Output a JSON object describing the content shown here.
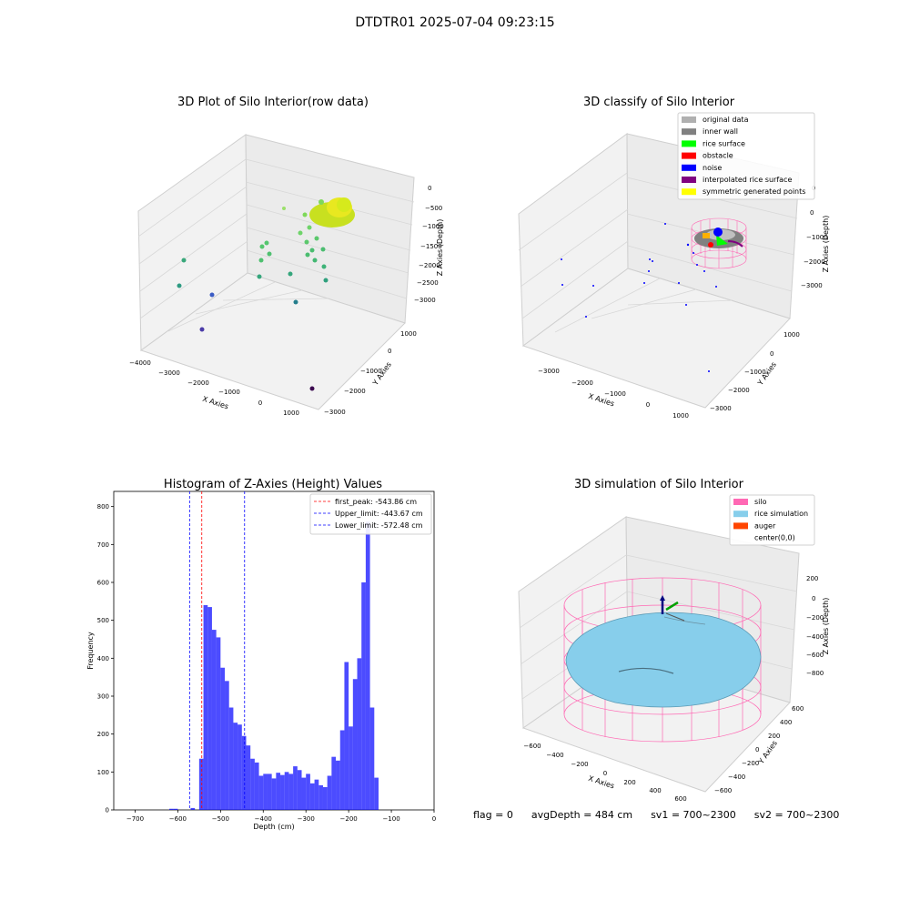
{
  "suptitle": "DTDTR01 2025-07-04 09:23:15",
  "panels": {
    "raw": {
      "title": "3D Plot of Silo Interior(row data)",
      "xlabel": "X Axies",
      "ylabel": "Y Axies",
      "zlabel": "Z Axies (Depth)",
      "xticks": [
        "−4000",
        "−3000",
        "−2000",
        "−1000",
        "0",
        "1000"
      ],
      "yticks": [
        "1000",
        "0",
        "−1000",
        "−2000",
        "−3000"
      ],
      "zticks": [
        "0",
        "−500",
        "−1000",
        "−1500",
        "−2000",
        "−2500",
        "−3000"
      ]
    },
    "classify": {
      "title": "3D classify of Silo Interior",
      "xlabel": "X Axies",
      "ylabel": "Y Axies",
      "zlabel": "Z Axies (Depth)",
      "xticks": [
        "−3000",
        "−2000",
        "−1000",
        "0",
        "1000"
      ],
      "yticks": [
        "1000",
        "0",
        "−1000",
        "−2000",
        "−3000"
      ],
      "zticks": [
        "0",
        "−1000",
        "−2000",
        "−3000"
      ],
      "legend": [
        {
          "label": "original data",
          "color": "#b0b0b0"
        },
        {
          "label": "inner wall",
          "color": "#808080"
        },
        {
          "label": "rice surface",
          "color": "#00ff00"
        },
        {
          "label": "obstacle",
          "color": "#ff0000"
        },
        {
          "label": "noise",
          "color": "#0000ff"
        },
        {
          "label": "interpolated rice surface",
          "color": "#800080"
        },
        {
          "label": "symmetric generated points",
          "color": "#ffff00"
        }
      ]
    },
    "simulation": {
      "title": "3D simulation of Silo Interior",
      "xlabel": "X Axies",
      "ylabel": "Y Axies",
      "zlabel": "Z Axies (Depth)",
      "xticks": [
        "−600",
        "−400",
        "−200",
        "0",
        "200",
        "400",
        "600"
      ],
      "yticks": [
        "600",
        "400",
        "200",
        "0",
        "−200",
        "−400",
        "−600"
      ],
      "zticks": [
        "200",
        "0",
        "−200",
        "−400",
        "−600",
        "−800"
      ],
      "legend": [
        {
          "label": "silo",
          "color": "#ff69b4"
        },
        {
          "label": "rice simulation",
          "color": "#87ceeb"
        },
        {
          "label": "auger",
          "color": "#ff4500"
        },
        {
          "label": "center(0,0)",
          "color": ""
        }
      ]
    }
  },
  "chart_data": {
    "type": "bar",
    "title": "Histogram of Z-Axies (Height) Values",
    "xlabel": "Depth (cm)",
    "ylabel": "Frequency",
    "xlim": [
      -750,
      0
    ],
    "ylim": [
      0,
      840
    ],
    "xticks": [
      -700,
      -600,
      -500,
      -400,
      -300,
      -200,
      -100,
      0
    ],
    "yticks": [
      0,
      100,
      200,
      300,
      400,
      500,
      600,
      700,
      800
    ],
    "bar_color": "#0000ff",
    "bin_width": 10,
    "bins_start": [
      -620,
      -610,
      -600,
      -590,
      -580,
      -570,
      -560,
      -550,
      -540,
      -530,
      -520,
      -510,
      -500,
      -490,
      -480,
      -470,
      -460,
      -450,
      -440,
      -430,
      -420,
      -410,
      -400,
      -390,
      -380,
      -370,
      -360,
      -350,
      -340,
      -330,
      -320,
      -310,
      -300,
      -290,
      -280,
      -270,
      -260,
      -250,
      -240,
      -230,
      -220,
      -210,
      -200,
      -190,
      -180,
      -170,
      -160,
      -150,
      -140,
      -130,
      -120,
      -110,
      -100,
      -90,
      -80,
      -70,
      -60,
      -50,
      -40,
      -30,
      -20,
      -10
    ],
    "values": [
      3,
      3,
      0,
      0,
      0,
      5,
      0,
      135,
      540,
      535,
      475,
      455,
      375,
      340,
      270,
      230,
      225,
      195,
      170,
      135,
      125,
      90,
      95,
      95,
      83,
      98,
      92,
      100,
      95,
      115,
      105,
      85,
      95,
      70,
      80,
      65,
      60,
      90,
      140,
      130,
      210,
      390,
      220,
      345,
      400,
      600,
      760,
      270,
      85,
      0,
      0,
      0,
      0,
      0,
      0,
      0,
      0,
      0,
      0,
      0,
      0,
      0
    ],
    "vlines": [
      {
        "label": "first_peak: -543.86 cm",
        "x": -543.86,
        "color": "#ff0000"
      },
      {
        "label": "Upper_limit: -443.67 cm",
        "x": -443.67,
        "color": "#0000ff"
      },
      {
        "label": "Lower_limit: -572.48 cm",
        "x": -572.48,
        "color": "#0000ff"
      }
    ]
  },
  "footer": {
    "flag": "flag = 0",
    "avg": "avgDepth = 484 cm",
    "sv1": "sv1 = 700~2300",
    "sv2": "sv2 = 700~2300"
  }
}
